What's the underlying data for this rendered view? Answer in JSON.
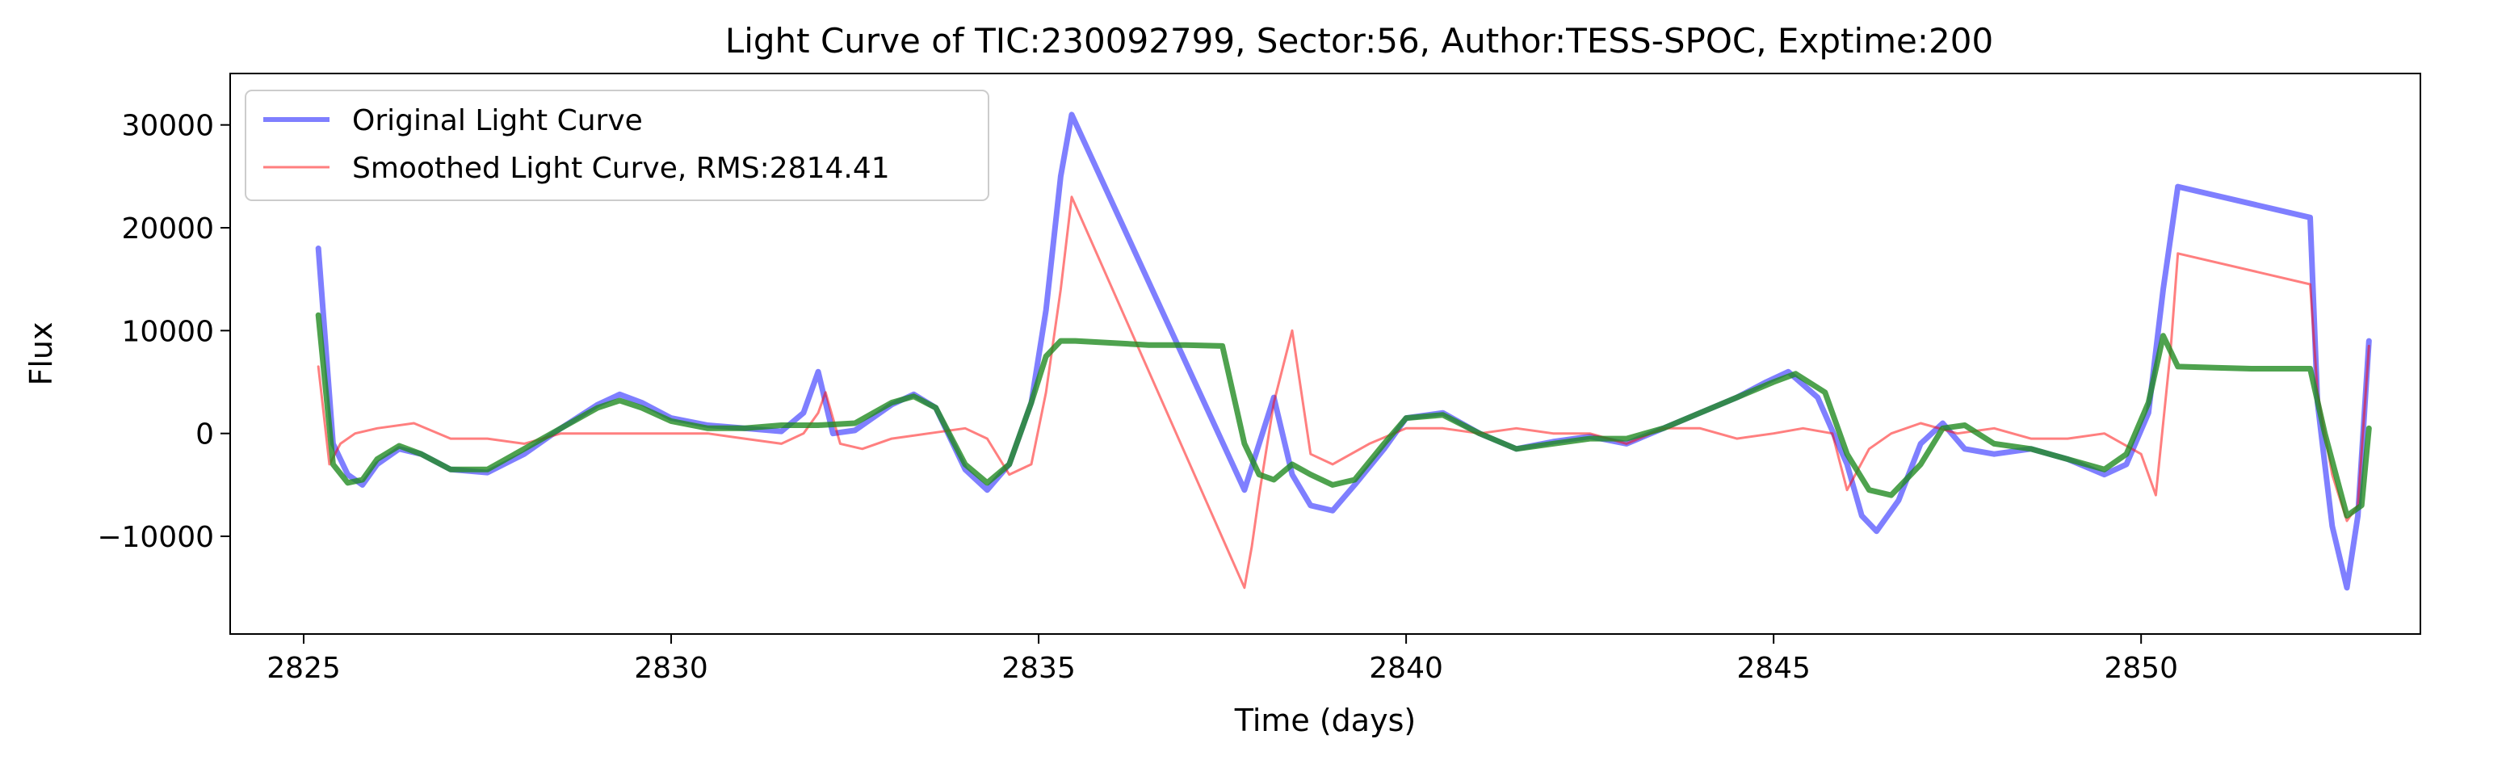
{
  "chart_data": {
    "type": "line",
    "title": "Light Curve of TIC:230092799, Sector:56, Author:TESS-SPOC, Exptime:200",
    "xlabel": "Time (days)",
    "ylabel": "Flux",
    "xlim": [
      2824.0,
      2853.8
    ],
    "ylim": [
      -19500,
      35000
    ],
    "xticks": [
      2825,
      2830,
      2835,
      2840,
      2845,
      2850
    ],
    "yticks": [
      -10000,
      0,
      10000,
      20000,
      30000
    ],
    "ytick_labels": [
      "−10000",
      "0",
      "10000",
      "20000",
      "30000"
    ],
    "grid": false,
    "legend": {
      "placement": "upper-left"
    },
    "series": [
      {
        "name": "Original Light Curve",
        "color": "#0000ff",
        "x": [
          2825.2,
          2825.4,
          2825.6,
          2825.8,
          2826.0,
          2826.3,
          2826.6,
          2827.0,
          2827.5,
          2828.0,
          2828.5,
          2829.0,
          2829.3,
          2829.6,
          2830.0,
          2830.5,
          2831.0,
          2831.5,
          2831.8,
          2832.0,
          2832.2,
          2832.5,
          2833.0,
          2833.3,
          2833.6,
          2834.0,
          2834.3,
          2834.6,
          2834.9,
          2835.1,
          2835.3,
          2835.45,
          2837.8,
          2838.0,
          2838.2,
          2838.45,
          2838.7,
          2839.0,
          2839.3,
          2839.7,
          2840.0,
          2840.5,
          2841.0,
          2841.5,
          2842.0,
          2842.5,
          2843.0,
          2843.5,
          2844.0,
          2844.5,
          2844.9,
          2845.2,
          2845.6,
          2846.0,
          2846.2,
          2846.4,
          2846.7,
          2847.0,
          2847.3,
          2847.6,
          2848.0,
          2848.5,
          2849.0,
          2849.5,
          2849.8,
          2850.1,
          2850.3,
          2850.5,
          2852.3,
          2852.4,
          2852.6,
          2852.8,
          2852.95,
          2853.1
        ],
        "y": [
          18000,
          -1000,
          -4000,
          -5000,
          -3000,
          -1500,
          -2000,
          -3500,
          -3800,
          -2000,
          500,
          2800,
          3800,
          3000,
          1500,
          800,
          500,
          200,
          2000,
          6000,
          0,
          300,
          2800,
          3800,
          2500,
          -3500,
          -5500,
          -3000,
          3000,
          12000,
          25000,
          31000,
          -5500,
          -1000,
          3500,
          -4000,
          -7000,
          -7500,
          -5000,
          -1500,
          1500,
          2000,
          0,
          -1500,
          -800,
          -300,
          -1000,
          500,
          2000,
          3500,
          5000,
          6000,
          3500,
          -3000,
          -8000,
          -9500,
          -6500,
          -1000,
          1000,
          -1500,
          -2000,
          -1500,
          -2500,
          -4000,
          -3000,
          2000,
          14000,
          24000,
          21000,
          3000,
          -9000,
          -15000,
          -8000,
          9000
        ]
      },
      {
        "name": "Smoothed Light Curve, RMS:2814.41",
        "color": "#ff0000",
        "x": [
          2825.2,
          2825.35,
          2825.5,
          2825.7,
          2826.0,
          2826.5,
          2827.0,
          2827.5,
          2828.0,
          2828.5,
          2829.0,
          2829.5,
          2830.0,
          2830.5,
          2831.0,
          2831.5,
          2831.8,
          2832.0,
          2832.1,
          2832.3,
          2832.6,
          2833.0,
          2833.5,
          2834.0,
          2834.3,
          2834.6,
          2834.9,
          2835.1,
          2835.3,
          2835.45,
          2837.8,
          2837.9,
          2838.0,
          2838.2,
          2838.45,
          2838.7,
          2839.0,
          2839.5,
          2840.0,
          2840.5,
          2841.0,
          2841.5,
          2842.0,
          2842.5,
          2843.0,
          2843.5,
          2844.0,
          2844.5,
          2845.0,
          2845.4,
          2845.8,
          2846.0,
          2846.3,
          2846.6,
          2847.0,
          2847.5,
          2848.0,
          2848.5,
          2849.0,
          2849.5,
          2850.0,
          2850.2,
          2850.4,
          2850.5,
          2852.3,
          2852.4,
          2852.6,
          2852.8,
          2852.95,
          2853.1
        ],
        "y": [
          6500,
          -3000,
          -1000,
          0,
          500,
          1000,
          -500,
          -500,
          -1000,
          0,
          0,
          0,
          0,
          0,
          -500,
          -1000,
          0,
          2000,
          4000,
          -1000,
          -1500,
          -500,
          0,
          500,
          -500,
          -4000,
          -3000,
          4000,
          14000,
          23000,
          -15000,
          -11000,
          -6000,
          3000,
          10000,
          -2000,
          -3000,
          -1000,
          500,
          500,
          0,
          500,
          0,
          0,
          -1000,
          500,
          500,
          -500,
          0,
          500,
          0,
          -5500,
          -1500,
          0,
          1000,
          0,
          500,
          -500,
          -500,
          0,
          -2000,
          -6000,
          8000,
          17500,
          14500,
          4000,
          -4000,
          -8500,
          -7000,
          8500
        ]
      },
      {
        "name": "",
        "color": "#228b22",
        "x": [
          2825.2,
          2825.4,
          2825.6,
          2825.8,
          2826.0,
          2826.3,
          2826.6,
          2827.0,
          2827.5,
          2828.0,
          2828.5,
          2829.0,
          2829.3,
          2829.6,
          2830.0,
          2830.5,
          2831.0,
          2831.5,
          2832.0,
          2832.5,
          2833.0,
          2833.3,
          2833.6,
          2834.0,
          2834.3,
          2834.6,
          2834.9,
          2835.1,
          2835.3,
          2835.5,
          2836.0,
          2836.5,
          2837.0,
          2837.5,
          2837.8,
          2838.0,
          2838.2,
          2838.45,
          2838.7,
          2839.0,
          2839.3,
          2839.7,
          2840.0,
          2840.5,
          2841.0,
          2841.5,
          2842.0,
          2842.5,
          2843.0,
          2843.5,
          2844.0,
          2844.5,
          2845.0,
          2845.3,
          2845.7,
          2846.0,
          2846.3,
          2846.6,
          2847.0,
          2847.3,
          2847.6,
          2848.0,
          2848.5,
          2849.0,
          2849.5,
          2849.8,
          2850.1,
          2850.3,
          2850.5,
          2851.0,
          2851.5,
          2852.0,
          2852.3,
          2852.5,
          2852.8,
          2853.0,
          2853.1
        ],
        "y": [
          11500,
          -3000,
          -4800,
          -4500,
          -2500,
          -1200,
          -2000,
          -3500,
          -3500,
          -1500,
          500,
          2500,
          3200,
          2500,
          1200,
          500,
          500,
          800,
          800,
          1000,
          3000,
          3600,
          2500,
          -3000,
          -4800,
          -3000,
          3000,
          7500,
          9000,
          9000,
          8800,
          8600,
          8600,
          8500,
          -1000,
          -4000,
          -4500,
          -3000,
          -4000,
          -5000,
          -4500,
          -1000,
          1500,
          1800,
          0,
          -1500,
          -1000,
          -500,
          -500,
          500,
          2000,
          3500,
          5000,
          5800,
          4000,
          -2000,
          -5500,
          -6000,
          -3000,
          500,
          800,
          -1000,
          -1500,
          -2500,
          -3500,
          -2000,
          3000,
          9500,
          6500,
          6400,
          6300,
          6300,
          6300,
          0,
          -8000,
          -7000,
          500
        ]
      }
    ]
  }
}
